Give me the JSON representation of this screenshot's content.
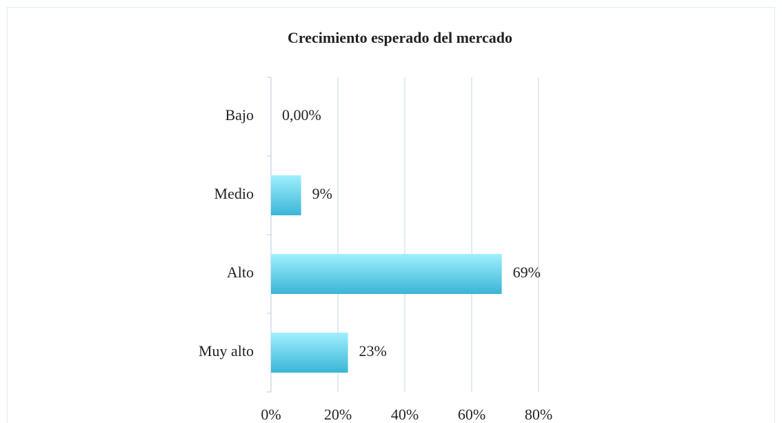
{
  "chart_data": {
    "type": "bar",
    "orientation": "horizontal",
    "title": "Crecimiento esperado del mercado",
    "categories": [
      "Bajo",
      "Medio",
      "Alto",
      "Muy alto"
    ],
    "values": [
      0,
      9,
      69,
      23
    ],
    "value_labels": [
      "0,00%",
      "9%",
      "69%",
      "23%"
    ],
    "color": "#3ab5d6",
    "xlim": [
      0,
      80
    ],
    "xticks": [
      {
        "value": 0,
        "label": "0%"
      },
      {
        "value": 20,
        "label": "20%"
      },
      {
        "value": 40,
        "label": "40%"
      },
      {
        "value": 60,
        "label": "60%"
      },
      {
        "value": 80,
        "label": "80%"
      }
    ],
    "grid": true
  }
}
